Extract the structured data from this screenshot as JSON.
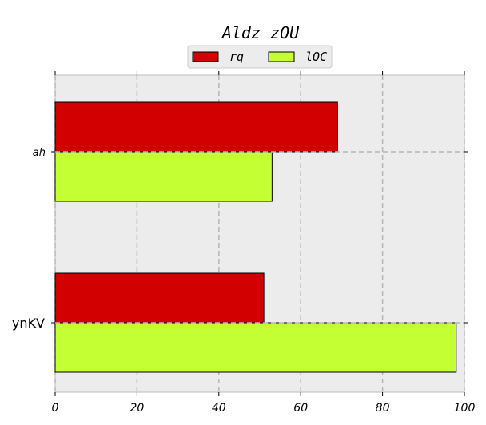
{
  "colors": {
    "background": "#ffffff",
    "plot_area": "#ececec",
    "grid": "#b5b5b5",
    "series_rq": "#d20000",
    "series_lOC": "#c3ff33"
  },
  "chart_data": {
    "type": "bar",
    "orientation": "horizontal",
    "title": "Aldz  zOU",
    "xlabel": "",
    "ylabel": "",
    "categories": [
      "ah",
      "ynKV"
    ],
    "series": [
      {
        "name": "rq",
        "values": [
          69,
          51
        ]
      },
      {
        "name": "lOC",
        "values": [
          53,
          98
        ]
      }
    ],
    "xlim": [
      0,
      100
    ],
    "xticks": [
      "0",
      "20",
      "40",
      "60",
      "80",
      "100"
    ],
    "grid": true,
    "legend_position": "top-center"
  }
}
